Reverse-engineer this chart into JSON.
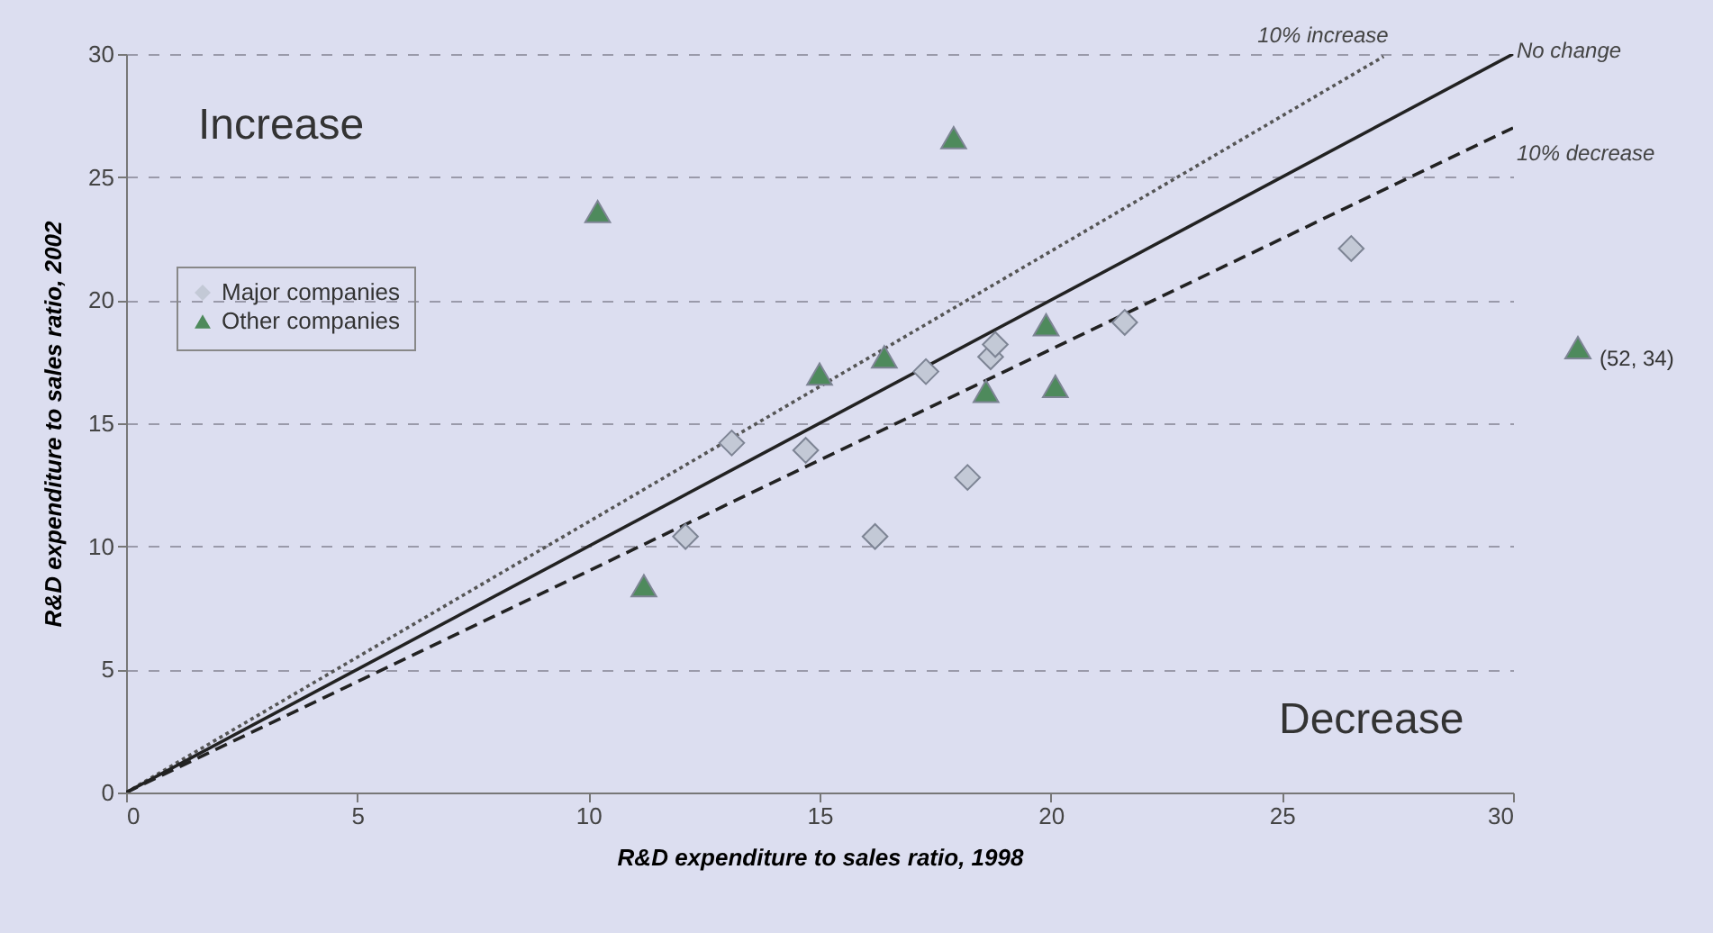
{
  "chart_data": {
    "type": "scatter",
    "xlabel": "R&D expenditure to sales ratio, 1998",
    "ylabel": "R&D expenditure to sales ratio, 2002",
    "xlim": [
      0,
      30
    ],
    "xticks": [
      0,
      5,
      10,
      15,
      20,
      25,
      30
    ],
    "ylim": [
      0,
      30
    ],
    "yticks": [
      0,
      5,
      10,
      15,
      20,
      25,
      30
    ],
    "grid": "y",
    "legend": "top left",
    "annotations": [
      "Increase",
      "Decrease",
      "(52, 34)"
    ],
    "series": [
      {
        "name": "Major companies",
        "marker": "diamond",
        "color": "#c3c9d6",
        "x": [
          12.1,
          13.1,
          14.7,
          16.2,
          17.3,
          18.2,
          18.7,
          18.8,
          21.6,
          26.5
        ],
        "values": [
          10.4,
          14.2,
          13.9,
          10.4,
          17.1,
          12.8,
          17.7,
          18.2,
          19.1,
          22.1
        ]
      },
      {
        "name": "Other companies",
        "marker": "triangle",
        "color": "#4e8a5c",
        "x": [
          10.2,
          11.2,
          15.0,
          16.4,
          17.9,
          18.6,
          19.9,
          20.1
        ],
        "values": [
          23.6,
          8.4,
          17.0,
          17.7,
          26.6,
          16.3,
          19.0,
          16.5
        ]
      },
      {
        "name": "10%  increase",
        "type": "line",
        "line_style": "dotted",
        "color": "#555555",
        "x": [
          0,
          27.2
        ],
        "values": [
          0,
          29.9
        ]
      },
      {
        "name": "No change",
        "type": "line",
        "line_style": "solid",
        "color": "#222222",
        "x": [
          0,
          30
        ],
        "values": [
          0,
          30
        ]
      },
      {
        "name": "10% decrease",
        "type": "line",
        "line_style": "dashed",
        "color": "#222222",
        "x": [
          0,
          30
        ],
        "values": [
          0,
          27
        ]
      }
    ]
  }
}
